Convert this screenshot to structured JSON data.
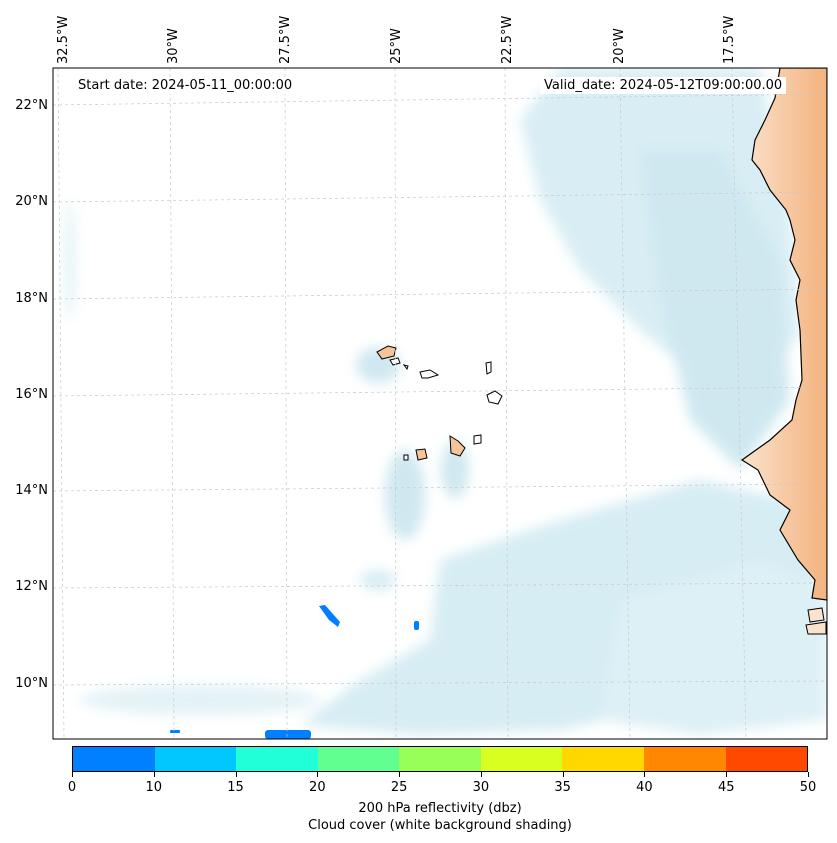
{
  "map": {
    "start_date": "Start date: 2024-05-11_00:00:00",
    "valid_date": "Valid_date: 2024-05-12T09:00:00.00",
    "lon_labels": [
      "32.5°W",
      "30°W",
      "27.5°W",
      "25°W",
      "22.5°W",
      "20°W",
      "17.5°W"
    ],
    "lat_labels": [
      "22°N",
      "20°N",
      "18°N",
      "16°N",
      "14°N",
      "12°N",
      "10°N"
    ],
    "land_color": "#f6c49a",
    "cloud_color": "#a9d8e6"
  },
  "colorbar": {
    "colors": [
      "#0080ff",
      "#00c8ff",
      "#20ffd8",
      "#60ff90",
      "#98ff58",
      "#d8ff20",
      "#ffd800",
      "#ff8800",
      "#ff4800"
    ],
    "ticks": [
      "0",
      "10",
      "15",
      "20",
      "25",
      "30",
      "35",
      "40",
      "45",
      "50"
    ],
    "label_line1": "200 hPa reflectivity (dbz)",
    "label_line2": "Cloud cover (white background shading)"
  }
}
